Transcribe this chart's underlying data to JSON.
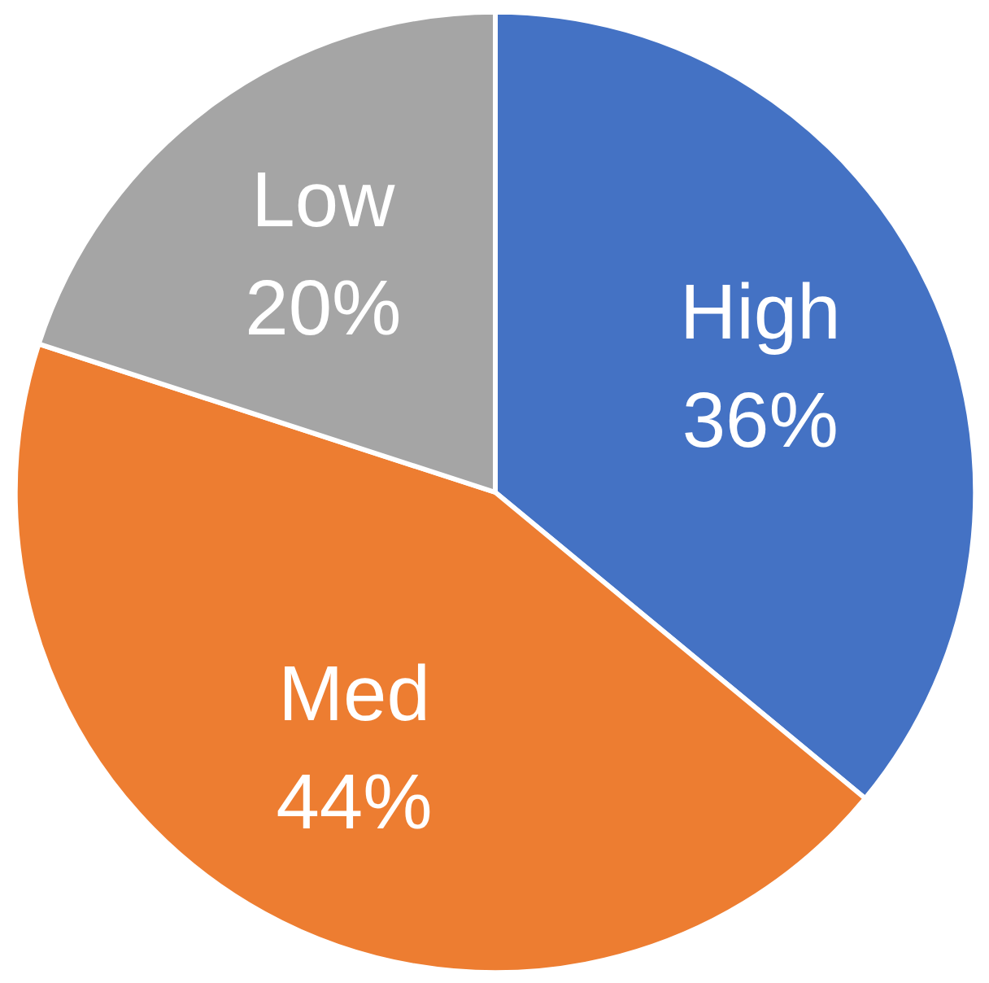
{
  "chart_data": {
    "type": "pie",
    "categories": [
      "High",
      "Med",
      "Low"
    ],
    "values": [
      36,
      44,
      20
    ],
    "value_labels": [
      "36%",
      "44%",
      "20%"
    ],
    "colors": [
      "#4472c4",
      "#ed7d31",
      "#a5a5a5"
    ],
    "legend": false
  }
}
